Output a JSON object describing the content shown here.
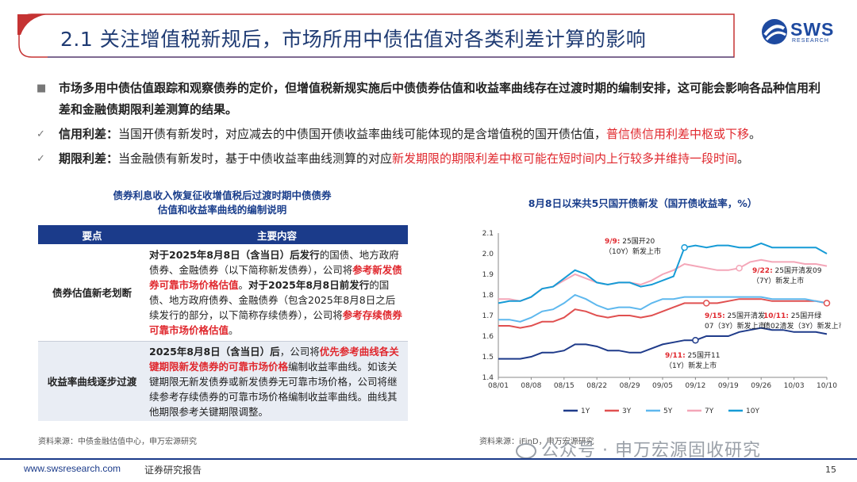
{
  "header": {
    "title": "2.1 关注增值税新规后，市场所用中债估值对各类利差计算的影响",
    "logo_main": "SWS",
    "logo_sub": "RESEARCH"
  },
  "bullets": {
    "b1": "市场多用中债估值跟踪和观察债券的定价，但增值税新规实施后中债债券估值和收益率曲线存在过渡时期的编制安排，这可能会影响各品种信用利差和金融债期限利差测算的结果。",
    "b2_label": "信用利差：",
    "b2_text": "当国开债有新发时，对应减去的中债国开债收益率曲线可能体现的是含增值税的国开债估值，",
    "b2_red": "普信债信用利差中枢或下移",
    "b2_end": "。",
    "b3_label": "期限利差：",
    "b3_text": "当金融债有新发时，基于中债收益率曲线测算的对应",
    "b3_red": "新发期限的期限利差中枢可能在短时间内上行较多并维持一段时间",
    "b3_end": "。"
  },
  "table": {
    "title_line1": "债券利息收入恢复征收增值税后过渡时期中债债券",
    "title_line2": "估值和收益率曲线的编制说明",
    "col1": "要点",
    "col2": "主要内容",
    "row1_head": "债券估值新老划断",
    "row1_p1": "对于2025年8月8日（含当日）后发行",
    "row1_p2": "的国债、地方政府债券、金融债券（以下简称新发债券），公司将",
    "row1_p3": "参考新发债券可靠市场价格估值",
    "row1_p4": "。",
    "row1_p5": "对于2025年8月8日前发行",
    "row1_p6": "的国债、地方政府债券、金融债券（包含2025年8月8日之后续发行的部分，以下简称存续债券），公司将",
    "row1_p7": "参考存续债券可靠市场价格估值",
    "row1_p8": "。",
    "row2_head": "收益率曲线逐步过渡",
    "row2_p1": "2025年8月8日（含当日）后",
    "row2_p2": "，公司将",
    "row2_p3": "优先参考曲线各关键期限新发债券的可靠市场价格",
    "row2_p4": "编制收益率曲线。如该关键期限无新发债券或新发债券无可靠市场价格，公司将继续参考存续债券的可靠市场价格编制收益率曲线。曲线其他期限参考关键期限调整。"
  },
  "source_left": "资料来源：中债金融估值中心，申万宏源研究",
  "source_right": "资料来源：iFinD，申万宏源研究",
  "chart_data": {
    "type": "line",
    "title": "8月8日以来共5只国开债新发（国开债收益率，%）",
    "x": [
      "08/01",
      "08/04",
      "08/06",
      "08/08",
      "08/11",
      "08/13",
      "08/15",
      "08/18",
      "08/20",
      "08/22",
      "08/25",
      "08/27",
      "08/29",
      "09/01",
      "09/03",
      "09/05",
      "09/08",
      "09/10",
      "09/12",
      "09/15",
      "09/17",
      "09/19",
      "09/22",
      "09/24",
      "09/26",
      "09/29",
      "10/01",
      "10/03",
      "10/06",
      "10/08",
      "10/10"
    ],
    "x_ticks": [
      "08/01",
      "08/08",
      "08/15",
      "08/22",
      "08/29",
      "09/05",
      "09/12",
      "09/19",
      "09/26",
      "10/03",
      "10/10"
    ],
    "ylim": [
      1.4,
      2.1
    ],
    "y_ticks": [
      "1.4",
      "1.5",
      "1.6",
      "1.7",
      "1.8",
      "1.9",
      "2.0",
      "2.1"
    ],
    "series": [
      {
        "name": "1Y",
        "color": "#1f3b8a",
        "values": [
          1.49,
          1.49,
          1.49,
          1.5,
          1.52,
          1.52,
          1.53,
          1.56,
          1.56,
          1.55,
          1.53,
          1.53,
          1.52,
          1.52,
          1.54,
          1.56,
          1.57,
          1.58,
          1.58,
          1.6,
          1.6,
          1.6,
          1.62,
          1.63,
          1.64,
          1.63,
          1.63,
          1.62,
          1.62,
          1.62,
          1.61
        ]
      },
      {
        "name": "3Y",
        "color": "#e05050",
        "values": [
          1.65,
          1.65,
          1.64,
          1.65,
          1.67,
          1.67,
          1.69,
          1.73,
          1.72,
          1.7,
          1.69,
          1.7,
          1.7,
          1.69,
          1.7,
          1.72,
          1.74,
          1.76,
          1.76,
          1.76,
          1.76,
          1.77,
          1.78,
          1.78,
          1.78,
          1.77,
          1.77,
          1.77,
          1.77,
          1.77,
          1.76
        ]
      },
      {
        "name": "5Y",
        "color": "#5eb8ee",
        "values": [
          1.68,
          1.68,
          1.67,
          1.69,
          1.72,
          1.73,
          1.76,
          1.8,
          1.78,
          1.75,
          1.73,
          1.74,
          1.74,
          1.73,
          1.76,
          1.78,
          1.78,
          1.79,
          1.79,
          1.79,
          1.79,
          1.79,
          1.79,
          1.79,
          1.79,
          1.78,
          1.78,
          1.78,
          1.78,
          1.77,
          1.76
        ]
      },
      {
        "name": "7Y",
        "color": "#f4a6b8",
        "values": [
          1.78,
          1.78,
          1.77,
          1.79,
          1.83,
          1.84,
          1.87,
          1.9,
          1.88,
          1.86,
          1.85,
          1.86,
          1.86,
          1.85,
          1.87,
          1.9,
          1.92,
          1.95,
          1.94,
          1.93,
          1.92,
          1.92,
          1.93,
          1.96,
          1.97,
          1.96,
          1.96,
          1.96,
          1.95,
          1.95,
          1.94
        ]
      },
      {
        "name": "10Y",
        "color": "#169bd6",
        "values": [
          1.76,
          1.77,
          1.77,
          1.79,
          1.83,
          1.84,
          1.88,
          1.92,
          1.9,
          1.86,
          1.85,
          1.86,
          1.86,
          1.84,
          1.85,
          1.87,
          1.89,
          2.03,
          2.04,
          2.03,
          2.04,
          2.04,
          2.03,
          2.03,
          2.05,
          2.03,
          2.03,
          2.03,
          2.03,
          2.03,
          2.0
        ]
      }
    ],
    "annotations": [
      {
        "date": "9/9:",
        "text": "25国开20",
        "text2": "（10Y）新发上市"
      },
      {
        "date": "9/22:",
        "text": "25国开清发09",
        "text2": "（7Y）新发上市"
      },
      {
        "date": "9/15:",
        "text": "25国开清发",
        "text2": "07（3Y）新发上市"
      },
      {
        "date": "10/11:",
        "text": "25国开绿",
        "text2": "债02清发（3Y）新发上市"
      },
      {
        "date": "9/11:",
        "text": "25国开11",
        "text2": "（1Y）新发上市"
      }
    ],
    "legend": "bottom"
  },
  "watermark": "公众号 · 申万宏源固收研究",
  "footer": {
    "url": "www.swsresearch.com",
    "report": "证券研究报告",
    "page": "15"
  }
}
